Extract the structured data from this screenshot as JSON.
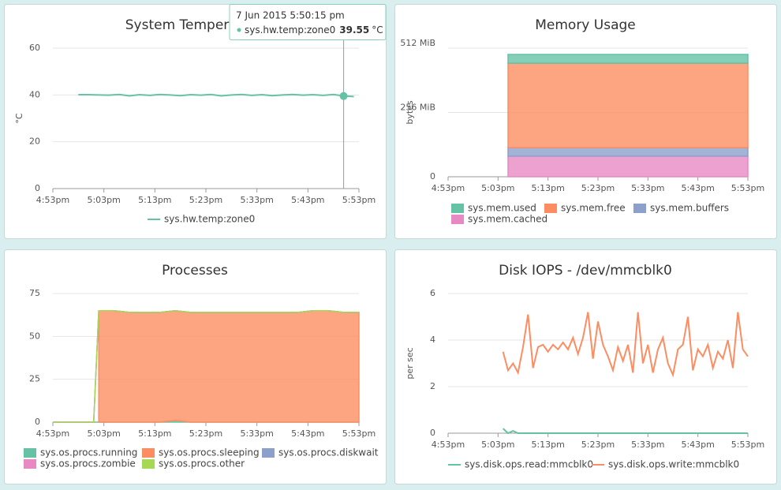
{
  "chart_data": [
    {
      "type": "line",
      "title": "System Temperature",
      "ylabel": "°C",
      "xlim": [
        1013,
        1073
      ],
      "xticks": [
        {
          "value": 1013,
          "label": "4:53pm"
        },
        {
          "value": 1023,
          "label": "5:03pm"
        },
        {
          "value": 1033,
          "label": "5:13pm"
        },
        {
          "value": 1043,
          "label": "5:23pm"
        },
        {
          "value": 1053,
          "label": "5:33pm"
        },
        {
          "value": 1063,
          "label": "5:43pm"
        },
        {
          "value": 1073,
          "label": "5:53pm"
        }
      ],
      "ylim": [
        0,
        60
      ],
      "yticks": [
        0,
        20,
        40,
        60
      ],
      "x": [
        1018,
        1020,
        1022,
        1024,
        1026,
        1028,
        1030,
        1032,
        1034,
        1036,
        1038,
        1040,
        1042,
        1044,
        1046,
        1048,
        1050,
        1052,
        1054,
        1056,
        1058,
        1060,
        1062,
        1064,
        1066,
        1068,
        1070,
        1072
      ],
      "series": [
        {
          "name": "sys.hw.temp:zone0",
          "color": "#66c2a5",
          "values": [
            40.1,
            40.1,
            40.0,
            39.9,
            40.2,
            39.6,
            40.1,
            39.8,
            40.2,
            40.0,
            39.7,
            40.1,
            39.9,
            40.2,
            39.6,
            40.0,
            40.2,
            39.8,
            40.1,
            39.7,
            40.0,
            40.2,
            39.9,
            40.1,
            39.8,
            40.2,
            39.55,
            39.3
          ]
        }
      ],
      "tooltip": {
        "title": "7 Jun 2015 5:50:15 pm",
        "series": "sys.hw.temp:zone0",
        "value": 39.55,
        "unit": "°C"
      }
    },
    {
      "type": "area",
      "title": "Memory Usage",
      "ylabel": "bytes",
      "stack_order": "last-at-bottom",
      "xlim": [
        1013,
        1073
      ],
      "xticks": [
        {
          "value": 1013,
          "label": "4:53pm"
        },
        {
          "value": 1023,
          "label": "5:03pm"
        },
        {
          "value": 1033,
          "label": "5:13pm"
        },
        {
          "value": 1043,
          "label": "5:23pm"
        },
        {
          "value": 1053,
          "label": "5:33pm"
        },
        {
          "value": 1063,
          "label": "5:43pm"
        },
        {
          "value": 1073,
          "label": "5:53pm"
        }
      ],
      "ylim": [
        0,
        512
      ],
      "yticks": [
        0,
        {
          "value": 256,
          "label": "256 MiB"
        },
        {
          "value": 512,
          "label": "512 MiB"
        }
      ],
      "x": [
        1025,
        1073
      ],
      "series": [
        {
          "name": "sys.mem.used",
          "color": "#66c2a5",
          "values": [
            35,
            35
          ]
        },
        {
          "name": "sys.mem.free",
          "color": "#fc8d62",
          "values": [
            336,
            336
          ]
        },
        {
          "name": "sys.mem.buffers",
          "color": "#8da0cb",
          "values": [
            34,
            34
          ]
        },
        {
          "name": "sys.mem.cached",
          "color": "#e78ac3",
          "values": [
            82,
            82
          ]
        }
      ]
    },
    {
      "type": "area",
      "title": "Processes",
      "stack_order": "first-at-bottom",
      "xlim": [
        1013,
        1073
      ],
      "xticks": [
        {
          "value": 1013,
          "label": "4:53pm"
        },
        {
          "value": 1023,
          "label": "5:03pm"
        },
        {
          "value": 1033,
          "label": "5:13pm"
        },
        {
          "value": 1043,
          "label": "5:23pm"
        },
        {
          "value": 1053,
          "label": "5:33pm"
        },
        {
          "value": 1063,
          "label": "5:43pm"
        },
        {
          "value": 1073,
          "label": "5:53pm"
        }
      ],
      "ylim": [
        0,
        75
      ],
      "yticks": [
        0,
        25,
        50,
        75
      ],
      "x": [
        1013,
        1017,
        1021,
        1022,
        1025,
        1028,
        1031,
        1034,
        1037,
        1040,
        1043,
        1046,
        1049,
        1052,
        1055,
        1058,
        1061,
        1064,
        1067,
        1070,
        1073
      ],
      "series": [
        {
          "name": "sys.os.procs.running",
          "color": "#66c2a5",
          "values": [
            0,
            0,
            0,
            0,
            0,
            0,
            0,
            0,
            1,
            0,
            0,
            0,
            0,
            0,
            0,
            0,
            0,
            0,
            0,
            0,
            0
          ]
        },
        {
          "name": "sys.os.procs.sleeping",
          "color": "#fc8d62",
          "values": [
            null,
            null,
            null,
            65,
            65,
            64,
            64,
            64,
            64,
            64,
            64,
            64,
            64,
            64,
            64,
            64,
            64,
            65,
            65,
            64,
            64
          ]
        },
        {
          "name": "sys.os.procs.diskwait",
          "color": "#8da0cb",
          "values": [
            0,
            0,
            0,
            0,
            0,
            0,
            0,
            0,
            0,
            0,
            0,
            0,
            0,
            0,
            0,
            0,
            0,
            0,
            0,
            0,
            0
          ]
        },
        {
          "name": "sys.os.procs.zombie",
          "color": "#e78ac3",
          "values": [
            0,
            0,
            0,
            0,
            0,
            0,
            0,
            0,
            0,
            0,
            0,
            0,
            0,
            0,
            0,
            0,
            0,
            0,
            0,
            0,
            0
          ]
        },
        {
          "name": "sys.os.procs.other",
          "color": "#a6d854",
          "values": [
            0,
            0,
            0,
            0,
            0,
            0,
            0,
            0,
            0,
            0,
            0,
            0,
            0,
            0,
            0,
            0,
            0,
            0,
            0,
            0,
            0
          ]
        }
      ]
    },
    {
      "type": "line",
      "title": "Disk IOPS - /dev/mmcblk0",
      "ylabel": "per sec",
      "xlim": [
        1013,
        1073
      ],
      "xticks": [
        {
          "value": 1013,
          "label": "4:53pm"
        },
        {
          "value": 1023,
          "label": "5:03pm"
        },
        {
          "value": 1033,
          "label": "5:13pm"
        },
        {
          "value": 1043,
          "label": "5:23pm"
        },
        {
          "value": 1053,
          "label": "5:33pm"
        },
        {
          "value": 1063,
          "label": "5:43pm"
        },
        {
          "value": 1073,
          "label": "5:53pm"
        }
      ],
      "ylim": [
        0,
        6
      ],
      "yticks": [
        0,
        2,
        4,
        6
      ],
      "x": [
        1024,
        1025,
        1026,
        1027,
        1028,
        1029,
        1030,
        1031,
        1032,
        1033,
        1034,
        1035,
        1036,
        1037,
        1038,
        1039,
        1040,
        1041,
        1042,
        1043,
        1044,
        1045,
        1046,
        1047,
        1048,
        1049,
        1050,
        1051,
        1052,
        1053,
        1054,
        1055,
        1056,
        1057,
        1058,
        1059,
        1060,
        1061,
        1062,
        1063,
        1064,
        1065,
        1066,
        1067,
        1068,
        1069,
        1070,
        1071,
        1072,
        1073
      ],
      "series": [
        {
          "name": "sys.disk.ops.read:mmcblk0",
          "color": "#66c2a5",
          "values": [
            0.2,
            0,
            0.1,
            0,
            0,
            0,
            0,
            0,
            0,
            0,
            0,
            0,
            0,
            0,
            0,
            0,
            0,
            0,
            0,
            0,
            0,
            0,
            0,
            0,
            0,
            0,
            0,
            0,
            0,
            0,
            0,
            0,
            0,
            0,
            0,
            0,
            0,
            0,
            0,
            0,
            0,
            0,
            0,
            0,
            0,
            0,
            0,
            0,
            0,
            0
          ]
        },
        {
          "name": "sys.disk.ops.write:mmcblk0",
          "color": "#fc8d62",
          "values": [
            3.5,
            2.7,
            3.0,
            2.6,
            3.7,
            5.1,
            2.8,
            3.7,
            3.8,
            3.5,
            3.8,
            3.6,
            3.9,
            3.6,
            4.1,
            3.4,
            4.1,
            5.2,
            3.2,
            4.8,
            3.8,
            3.3,
            2.7,
            3.7,
            3.1,
            3.8,
            2.6,
            5.2,
            3.0,
            3.8,
            2.6,
            3.6,
            4.1,
            3.0,
            2.5,
            3.6,
            3.8,
            5.0,
            2.7,
            3.6,
            3.3,
            3.8,
            2.8,
            3.5,
            3.2,
            4.0,
            2.8,
            5.2,
            3.6,
            3.3
          ]
        }
      ]
    }
  ]
}
